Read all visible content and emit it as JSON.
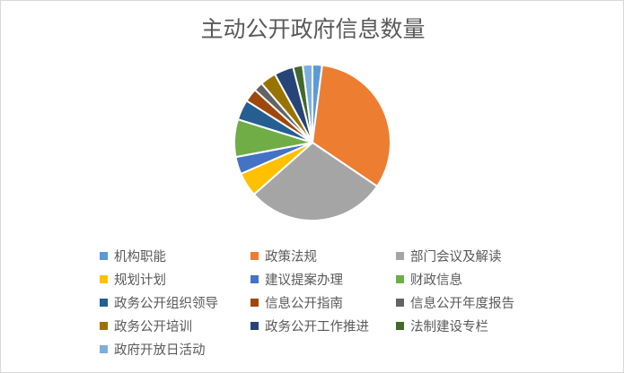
{
  "chart_data": {
    "type": "pie",
    "title": "主动公开政府信息数量",
    "legend_position": "bottom",
    "start_angle_deg": 0,
    "direction": "clockwise",
    "categories": [
      "机构职能",
      "政策法规",
      "部门会议及解读",
      "规划计划",
      "建议提案办理",
      "财政信息",
      "政务公开组织领导",
      "信息公开指南",
      "信息公开年度报告",
      "政务公开培训",
      "政务公开工作推进",
      "法制建设专栏",
      "政府开放日活动"
    ],
    "values": [
      2.0,
      32.5,
      29.0,
      5.0,
      3.6,
      7.8,
      4.2,
      2.8,
      1.9,
      3.3,
      4.0,
      2.0,
      2.0
    ],
    "colors": [
      "#5B9BD5",
      "#ED7D31",
      "#A5A5A5",
      "#FFC000",
      "#4472C4",
      "#70AD47",
      "#255E91",
      "#9E480E",
      "#636363",
      "#997300",
      "#264478",
      "#43682B",
      "#7CAFDD"
    ]
  }
}
